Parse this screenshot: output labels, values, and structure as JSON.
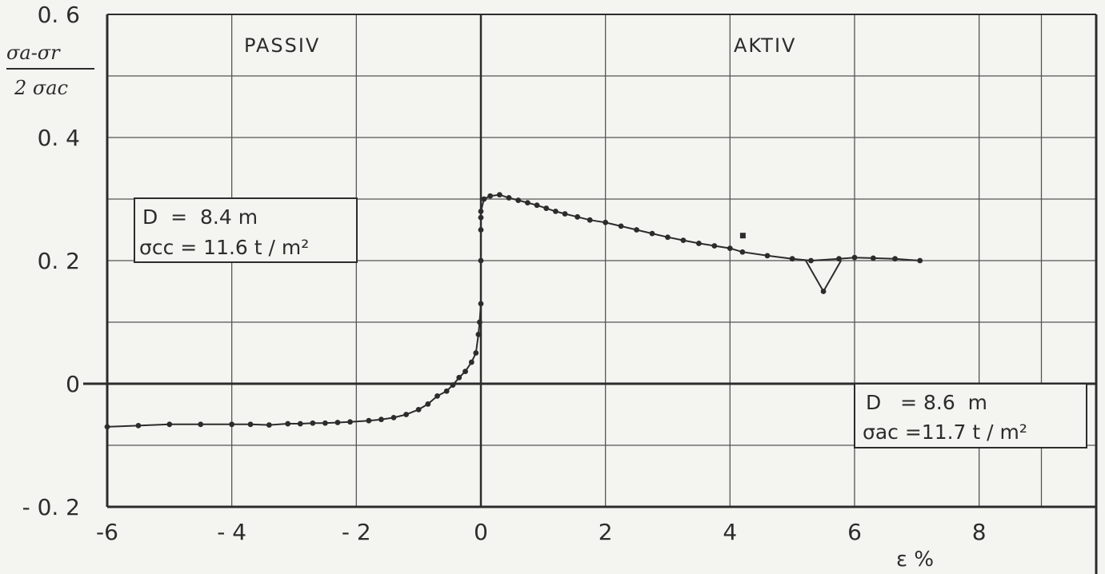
{
  "chart_data": {
    "type": "scatter",
    "title": "",
    "xlabel": "ε %",
    "ylabel": "σa-σr / 2 σac",
    "ylabel_num": "σa-σr",
    "ylabel_den": "2 σac",
    "xlim": [
      -6,
      10
    ],
    "ylim": [
      -0.2,
      0.6
    ],
    "x_ticks": [
      -6,
      -4,
      -2,
      0,
      2,
      4,
      6,
      8
    ],
    "x_tick_labels": [
      "-6",
      "- 4",
      "- 2",
      "0",
      "2",
      "4",
      "6",
      "8"
    ],
    "y_ticks": [
      -0.2,
      0,
      0.2,
      0.4,
      0.6
    ],
    "y_tick_labels": [
      "- 0. 2",
      "0",
      "0. 2",
      "0. 4",
      "0. 6"
    ],
    "x_grid": [
      -6,
      -4,
      -2,
      0,
      2,
      4,
      6,
      8
    ],
    "y_grid": [
      -0.1,
      0,
      0.1,
      0.2,
      0.3,
      0.4,
      0.5
    ],
    "grid": true,
    "regions": [
      "PASSIV",
      "AKTIV"
    ],
    "annotations": {
      "left_box": [
        "D  =  8.4 m",
        "σcc =  11.6 t / m²"
      ],
      "right_box": [
        "D   = 8.6  m",
        "σac =11.7 t / m²"
      ]
    },
    "series": [
      {
        "x": [
          -6.0,
          -5.5,
          -5.0,
          -4.5,
          -4.0,
          -3.7,
          -3.4,
          -3.1,
          -2.9,
          -2.7,
          -2.5,
          -2.3,
          -2.1,
          -1.8,
          -1.6,
          -1.4,
          -1.2,
          -1.0,
          -0.85,
          -0.7,
          -0.55,
          -0.45,
          -0.35,
          -0.25,
          -0.15,
          -0.08,
          -0.04,
          -0.02,
          0.0,
          0.0,
          0.0,
          0.0,
          0.0,
          0.05,
          0.15,
          0.3,
          0.45,
          0.6,
          0.75,
          0.9,
          1.05,
          1.2,
          1.35,
          1.55,
          1.75,
          2.0,
          2.25,
          2.5,
          2.75,
          3.0,
          3.25,
          3.5,
          3.75,
          4.0,
          4.2,
          4.6,
          5.0,
          5.3,
          5.5,
          5.75,
          6.0,
          6.3,
          6.65,
          7.05
        ],
        "y": [
          -0.07,
          -0.068,
          -0.066,
          -0.066,
          -0.066,
          -0.066,
          -0.067,
          -0.065,
          -0.065,
          -0.064,
          -0.064,
          -0.063,
          -0.062,
          -0.06,
          -0.058,
          -0.055,
          -0.05,
          -0.042,
          -0.033,
          -0.02,
          -0.012,
          -0.002,
          0.01,
          0.02,
          0.035,
          0.05,
          0.08,
          0.1,
          0.13,
          0.2,
          0.25,
          0.27,
          0.28,
          0.3,
          0.305,
          0.307,
          0.302,
          0.298,
          0.294,
          0.29,
          0.285,
          0.28,
          0.276,
          0.271,
          0.266,
          0.262,
          0.256,
          0.25,
          0.244,
          0.238,
          0.233,
          0.228,
          0.224,
          0.22,
          0.214,
          0.208,
          0.203,
          0.2,
          0.15,
          0.203,
          0.205,
          0.204,
          0.203,
          0.2
        ]
      }
    ],
    "outlier": {
      "x": 4.2,
      "y": 0.24
    }
  }
}
